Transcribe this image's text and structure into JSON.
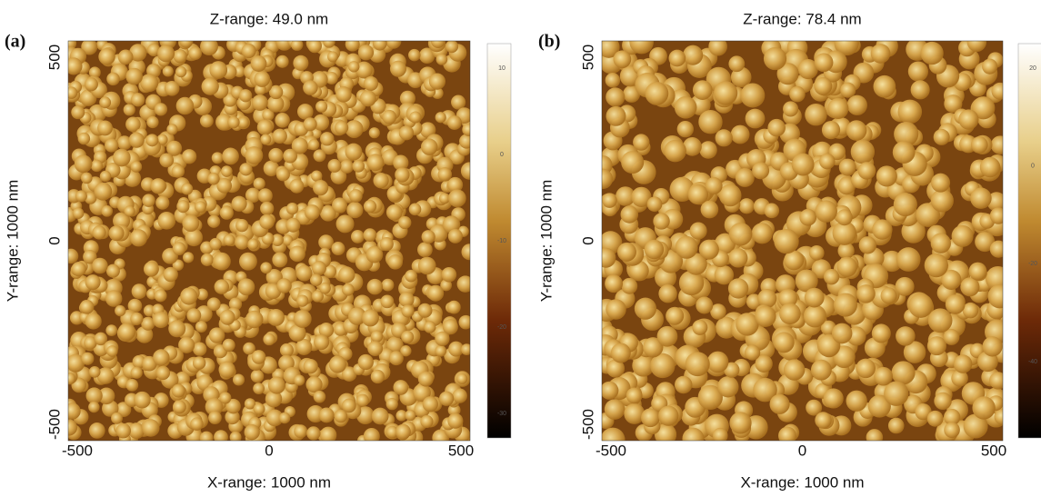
{
  "panels": [
    {
      "label": "(a)",
      "title": "Z-range: 49.0 nm",
      "y_axis_label": "Y-range: 1000 nm",
      "x_axis_label": "X-range: 1000 nm",
      "x_ticks": [
        "-500",
        "0",
        "500"
      ],
      "y_ticks": [
        "500",
        "0",
        "-500"
      ],
      "colorbar_ticks": [
        "10",
        "0",
        "-10",
        "-20",
        "-30"
      ]
    },
    {
      "label": "(b)",
      "title": "Z-range: 78.4 nm",
      "y_axis_label": "Y-range: 1000 nm",
      "x_axis_label": "X-range: 1000 nm",
      "x_ticks": [
        "-500",
        "0",
        "500"
      ],
      "y_ticks": [
        "500",
        "0",
        "-500"
      ],
      "colorbar_ticks": [
        "20",
        "0",
        "-20",
        "-40"
      ]
    }
  ]
}
